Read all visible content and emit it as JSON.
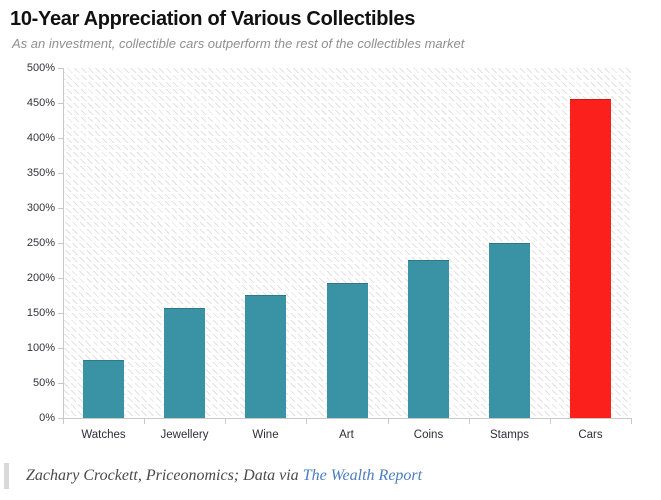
{
  "chart_data": {
    "type": "bar",
    "title": "10-Year Appreciation of Various Collectibles",
    "subtitle": "As an investment, collectible cars outperform the rest of the collectibles market",
    "categories": [
      "Watches",
      "Jewellery",
      "Wine",
      "Art",
      "Coins",
      "Stamps",
      "Cars"
    ],
    "values": [
      83,
      157,
      176,
      193,
      225,
      250,
      456
    ],
    "unit": "%",
    "xlabel": "",
    "ylabel": "",
    "ylim": [
      0,
      500
    ],
    "y_tick_step": 50,
    "y_tick_labels": [
      "0%",
      "50%",
      "100%",
      "150%",
      "200%",
      "250%",
      "300%",
      "350%",
      "400%",
      "450%",
      "500%"
    ],
    "grid": false,
    "legend": false,
    "plot_background": "hatched-diagonal",
    "bar_color": "#3a93a4",
    "highlight_category": "Cars",
    "highlight_color": "#fb201c",
    "axis_color": "#c9c9c9"
  },
  "footer": {
    "credit_prefix": "Zachary Crockett, Priceonomics; Data via",
    "link_text": "The Wealth Report",
    "link_color": "#4a7ebd",
    "text_color": "#4a4a4a"
  }
}
